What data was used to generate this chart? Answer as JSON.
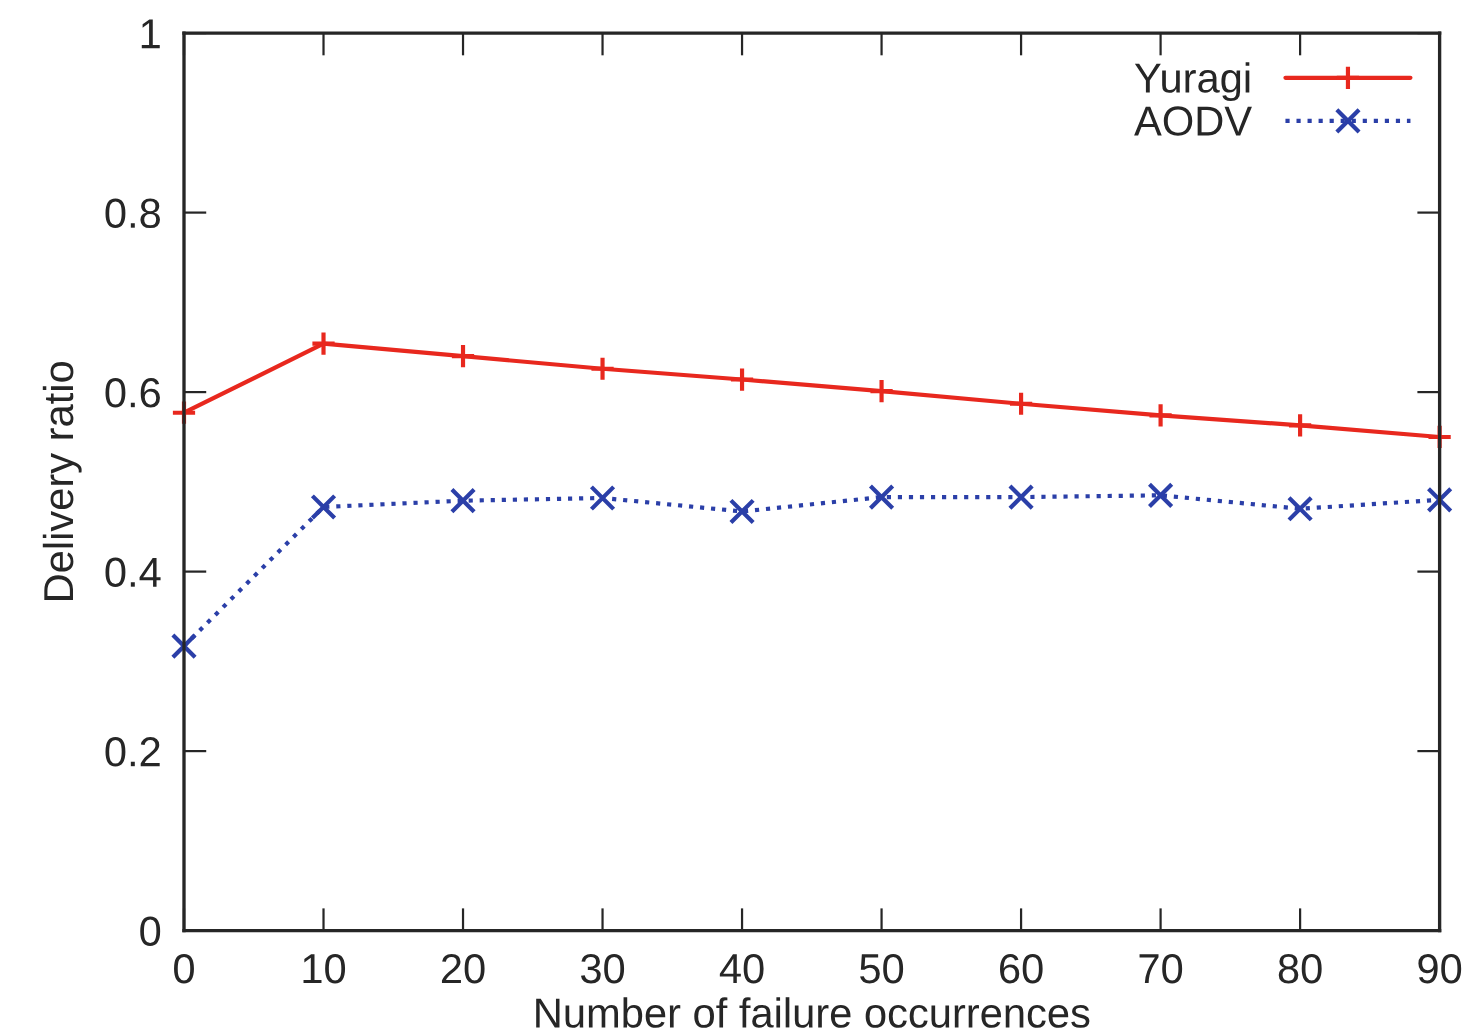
{
  "chart_data": {
    "type": "line",
    "xlabel": "Number of failure occurrences",
    "ylabel": "Delivery ratio",
    "x": [
      0,
      10,
      20,
      30,
      40,
      50,
      60,
      70,
      80,
      90
    ],
    "series": [
      {
        "name": "Yuragi",
        "color": "#e8281e",
        "marker": "plus",
        "line_style": "solid",
        "values": [
          0.577,
          0.654,
          0.64,
          0.626,
          0.614,
          0.601,
          0.587,
          0.574,
          0.563,
          0.55
        ]
      },
      {
        "name": "AODV",
        "color": "#2b3fa8",
        "marker": "cross",
        "line_style": "dotted",
        "values": [
          0.317,
          0.472,
          0.479,
          0.482,
          0.467,
          0.483,
          0.483,
          0.485,
          0.47,
          0.48
        ]
      }
    ],
    "xlim": [
      0,
      90
    ],
    "xticks": [
      0,
      10,
      20,
      30,
      40,
      50,
      60,
      70,
      80,
      90
    ],
    "ylim": [
      0,
      1
    ],
    "yticks": [
      0,
      0.2,
      0.4,
      0.6,
      0.8,
      1
    ],
    "grid": false,
    "legend": "top right"
  }
}
